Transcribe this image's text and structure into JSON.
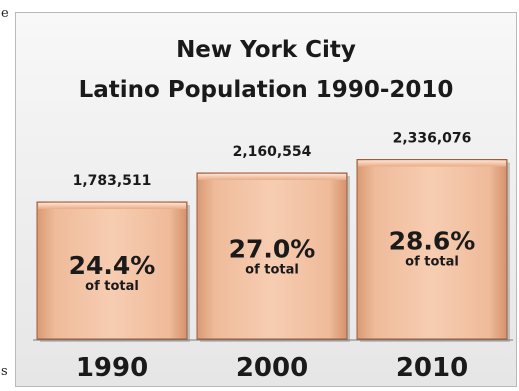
{
  "chart_data": {
    "type": "bar",
    "title": "New York City",
    "subtitle": "Latino Population 1990-2010",
    "categories": [
      "1990",
      "2000",
      "2010"
    ],
    "values": [
      1783511,
      2160554,
      2336076
    ],
    "value_labels": [
      "1,783,511",
      "2,160,554",
      "2,336,076"
    ],
    "share_labels": [
      "24.4%",
      "27.0%",
      "28.6%"
    ],
    "share_caption": "of total",
    "grid": false,
    "legend": "none"
  },
  "colors": {
    "bar_light": "#f7cdb2",
    "bar_mid": "#eab08c",
    "bar_dark": "#c8815a",
    "bar_edge": "#9a5c3b",
    "text": "#1a1a1a",
    "axis": "#7a7a7a"
  },
  "edge_marks": [
    "e",
    "s"
  ]
}
